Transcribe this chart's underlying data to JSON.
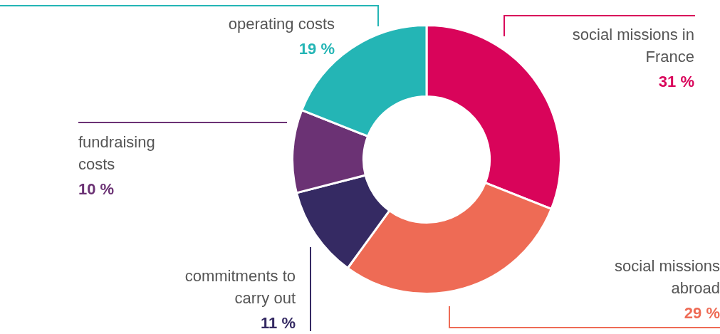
{
  "chart_data": {
    "type": "donut",
    "categories": [
      "social missions in France",
      "social missions abroad",
      "commitments to carry out",
      "fundraising costs",
      "operating costs"
    ],
    "values": [
      31,
      29,
      11,
      10,
      19
    ],
    "colors": [
      "#d9045a",
      "#ee6b55",
      "#352a63",
      "#6b3274",
      "#24b5b5"
    ],
    "value_labels": [
      "31 %",
      "29 %",
      "11 %",
      "10 %",
      "19 %"
    ],
    "legend": false
  }
}
